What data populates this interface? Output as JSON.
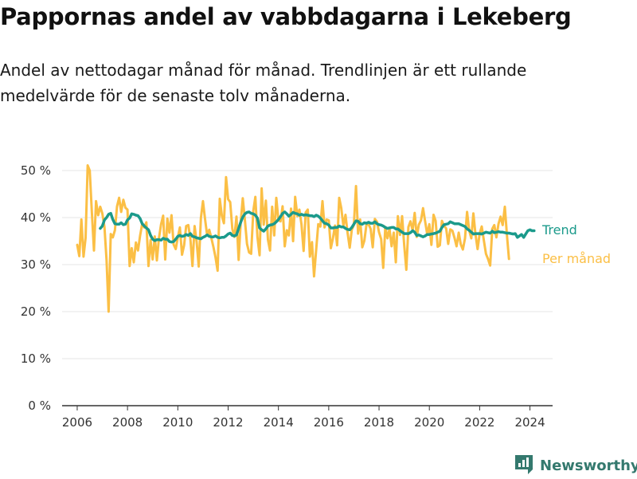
{
  "title": "Pappornas andel av vabbdagarna i Lekeberg",
  "subtitle": "Andel av nettodagar månad för månad. Trendlinjen är ett rullande medelvärde för de senaste tolv månaderna.",
  "brand": {
    "name": "Newsworthy",
    "icon": "bar-chart-logo-icon",
    "color": "#34796e"
  },
  "chart_data": {
    "type": "line",
    "x_start": "2006-01",
    "x_unit": "month",
    "xlim": [
      2005.4,
      2024.9
    ],
    "ylim": [
      0,
      52
    ],
    "yticks": [
      0,
      10,
      20,
      30,
      40,
      50
    ],
    "ytick_labels": [
      "0 %",
      "10 %",
      "20 %",
      "30 %",
      "40 %",
      "50 %"
    ],
    "xticks": [
      2006,
      2008,
      2010,
      2012,
      2014,
      2016,
      2018,
      2020,
      2022,
      2024
    ],
    "xtick_labels": [
      "2006",
      "2008",
      "2010",
      "2012",
      "2014",
      "2016",
      "2018",
      "2020",
      "2022",
      "2024"
    ],
    "grid": true,
    "series": [
      {
        "name": "Per månad",
        "color": "#fbbf45",
        "start": "2006-01",
        "values": [
          34.2,
          31.8,
          39.6,
          31.7,
          35.7,
          51.1,
          50.0,
          41.0,
          33.0,
          43.5,
          40.5,
          42.3,
          40.9,
          38.0,
          31.0,
          20.0,
          36.5,
          35.8,
          37.3,
          42.4,
          44.2,
          41.2,
          43.8,
          42.1,
          41.7,
          29.7,
          33.5,
          30.5,
          34.7,
          33.0,
          36.1,
          38.7,
          37.9,
          39.0,
          29.7,
          35.2,
          31.1,
          36.0,
          30.9,
          35.6,
          38.6,
          40.4,
          31.1,
          39.8,
          36.8,
          40.5,
          34.3,
          33.3,
          35.8,
          37.9,
          32.1,
          34.1,
          38.2,
          38.4,
          35.5,
          29.7,
          38.2,
          34.8,
          29.6,
          39.9,
          43.5,
          39.7,
          36.2,
          37.4,
          35.7,
          33.7,
          31.5,
          28.7,
          44.0,
          40.4,
          38.8,
          48.6,
          43.9,
          43.3,
          37.6,
          35.9,
          40.2,
          31.0,
          39.1,
          44.1,
          39.4,
          34.4,
          32.6,
          32.3,
          41.4,
          44.4,
          35.9,
          32.0,
          46.2,
          38.5,
          43.6,
          35.3,
          33.0,
          42.3,
          36.2,
          44.2,
          39.4,
          39.2,
          42.4,
          33.9,
          37.3,
          36.2,
          41.9,
          35.0,
          44.4,
          40.3,
          41.7,
          38.6,
          32.9,
          41.1,
          41.7,
          31.7,
          34.8,
          27.5,
          33.2,
          38.6,
          38.1,
          43.5,
          37.9,
          39.6,
          39.4,
          33.5,
          35.6,
          38.3,
          34.1,
          44.2,
          42.0,
          38.2,
          40.6,
          36.8,
          33.6,
          37.4,
          38.4,
          46.7,
          36.6,
          39.6,
          33.7,
          35.1,
          38.5,
          38.6,
          37.6,
          33.7,
          39.7,
          39.1,
          36.9,
          35.4,
          29.3,
          38.0,
          35.6,
          37.6,
          33.9,
          36.8,
          30.5,
          40.3,
          36.3,
          40.3,
          34.2,
          28.9,
          38.0,
          39.2,
          37.3,
          41.0,
          35.9,
          38.5,
          39.4,
          42.0,
          39.2,
          36.4,
          38.6,
          34.2,
          40.6,
          39.3,
          33.8,
          34.1,
          39.3,
          38.3,
          37.7,
          34.4,
          37.5,
          37.2,
          35.7,
          33.9,
          36.8,
          34.3,
          33.2,
          35.6,
          41.2,
          37.3,
          35.6,
          40.9,
          36.5,
          33.3,
          36.6,
          38.1,
          35.1,
          32.3,
          31.2,
          29.8,
          37.6,
          38.4,
          35.8,
          38.7,
          40.2,
          38.4,
          42.3,
          36.4,
          31.2
        ]
      },
      {
        "name": "Trend",
        "color": "#1b9a8b",
        "start": "2006-12",
        "values": [
          37.7,
          38.2,
          39.5,
          40.0,
          40.7,
          40.9,
          39.6,
          38.7,
          38.6,
          38.6,
          38.9,
          38.5,
          38.6,
          39.5,
          39.9,
          40.8,
          40.7,
          40.5,
          40.4,
          39.8,
          38.7,
          38.2,
          37.8,
          37.4,
          36.2,
          35.4,
          35.1,
          35.3,
          35.3,
          35.2,
          35.6,
          35.4,
          35.4,
          34.9,
          34.8,
          34.9,
          35.4,
          36.0,
          36.2,
          36.0,
          36.1,
          36.4,
          36.2,
          36.6,
          36.0,
          35.9,
          35.7,
          35.6,
          35.5,
          35.8,
          36.0,
          36.3,
          36.0,
          35.9,
          35.9,
          36.1,
          35.8,
          35.7,
          35.8,
          35.8,
          36.1,
          36.5,
          36.7,
          36.2,
          36.1,
          36.3,
          37.7,
          39.0,
          40.1,
          40.8,
          41.1,
          41.2,
          40.9,
          40.8,
          40.5,
          39.9,
          37.8,
          37.4,
          37.1,
          37.6,
          38.2,
          38.4,
          38.5,
          38.7,
          39.1,
          39.6,
          40.2,
          40.9,
          41.2,
          40.8,
          40.3,
          40.7,
          41.1,
          40.9,
          40.8,
          40.5,
          40.7,
          40.5,
          40.6,
          40.5,
          40.4,
          40.4,
          40.2,
          40.5,
          40.3,
          39.9,
          39.3,
          38.8,
          38.7,
          38.4,
          37.8,
          37.8,
          37.9,
          37.9,
          38.2,
          38.0,
          38.0,
          37.7,
          37.5,
          37.4,
          37.9,
          38.6,
          39.3,
          39.2,
          38.7,
          38.6,
          38.9,
          38.8,
          39.0,
          38.8,
          38.8,
          39.1,
          38.7,
          38.5,
          38.4,
          38.2,
          37.9,
          37.7,
          37.8,
          37.9,
          37.9,
          37.6,
          37.6,
          37.2,
          36.9,
          36.6,
          36.6,
          36.6,
          36.8,
          37.2,
          36.9,
          36.2,
          36.3,
          36.1,
          35.9,
          36.1,
          36.4,
          36.4,
          36.5,
          36.6,
          36.7,
          36.9,
          37.1,
          37.9,
          38.5,
          38.6,
          38.7,
          39.1,
          38.9,
          38.7,
          38.7,
          38.7,
          38.5,
          38.3,
          38.1,
          37.6,
          37.3,
          36.9,
          36.5,
          36.6,
          36.6,
          36.6,
          36.5,
          36.7,
          36.9,
          36.8,
          36.7,
          37.1,
          36.8,
          36.9,
          37.0,
          36.9,
          36.9,
          36.8,
          36.7,
          36.7,
          36.6,
          36.5,
          36.6,
          35.8,
          36.1,
          36.4,
          35.8,
          36.5,
          37.2,
          37.4,
          37.2,
          37.2
        ]
      }
    ]
  }
}
